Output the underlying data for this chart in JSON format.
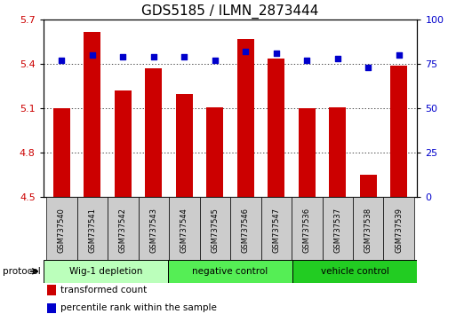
{
  "title": "GDS5185 / ILMN_2873444",
  "samples": [
    "GSM737540",
    "GSM737541",
    "GSM737542",
    "GSM737543",
    "GSM737544",
    "GSM737545",
    "GSM737546",
    "GSM737547",
    "GSM737536",
    "GSM737537",
    "GSM737538",
    "GSM737539"
  ],
  "bar_values": [
    5.1,
    5.62,
    5.22,
    5.37,
    5.2,
    5.11,
    5.57,
    5.44,
    5.1,
    5.11,
    4.65,
    5.39
  ],
  "dot_values": [
    77,
    80,
    79,
    79,
    79,
    77,
    82,
    81,
    77,
    78,
    73,
    80
  ],
  "ylim_left": [
    4.5,
    5.7
  ],
  "ylim_right": [
    0,
    100
  ],
  "yticks_left": [
    4.5,
    4.8,
    5.1,
    5.4,
    5.7
  ],
  "yticks_right": [
    0,
    25,
    50,
    75,
    100
  ],
  "bar_color": "#cc0000",
  "dot_color": "#0000cc",
  "groups": [
    {
      "label": "Wig-1 depletion",
      "indices": [
        0,
        1,
        2,
        3
      ],
      "color": "#bbffbb"
    },
    {
      "label": "negative control",
      "indices": [
        4,
        5,
        6,
        7
      ],
      "color": "#55ee55"
    },
    {
      "label": "vehicle control",
      "indices": [
        8,
        9,
        10,
        11
      ],
      "color": "#22cc22"
    }
  ],
  "sample_bg": "#cccccc",
  "protocol_label": "protocol",
  "legend_items": [
    {
      "label": "transformed count",
      "color": "#cc0000"
    },
    {
      "label": "percentile rank within the sample",
      "color": "#0000cc"
    }
  ],
  "title_fontsize": 11,
  "tick_fontsize": 8,
  "label_fontsize": 7.5
}
